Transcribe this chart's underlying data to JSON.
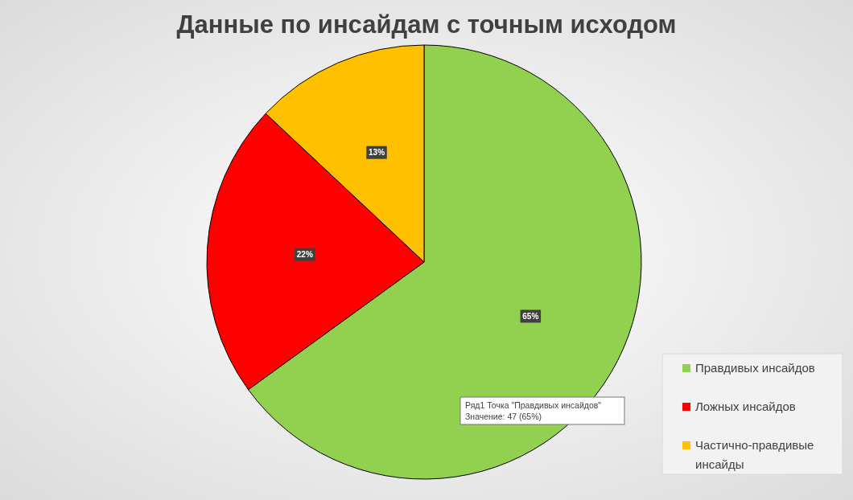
{
  "chart_data": {
    "type": "pie",
    "title": "Данные по инсайдам с точным исходом",
    "categories": [
      "Правдивых инсайдов",
      "Ложных инсайдов",
      "Частично-правдивые инсайды"
    ],
    "values": [
      65,
      22,
      13
    ],
    "colors": [
      "#92d050",
      "#ff0000",
      "#ffc000"
    ],
    "value_labels": [
      "65%",
      "22%",
      "13%"
    ],
    "legend": "right",
    "annotations": [
      "Ряд1 Точка \"Правдивых инсайдов\"",
      "Значение: 47 (65%)"
    ]
  }
}
